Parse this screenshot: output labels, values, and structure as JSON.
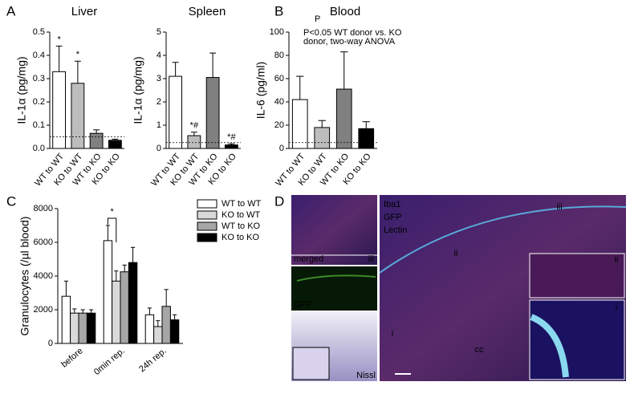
{
  "panels": [
    "A",
    "B",
    "C",
    "D"
  ],
  "chart_data": [
    {
      "type": "bar",
      "title": "Liver",
      "y_label": "IL-1α (pg/mg)",
      "categories": [
        "WT to WT",
        "KO to WT",
        "WT to KO",
        "KO to KO"
      ],
      "values": [
        0.33,
        0.28,
        0.065,
        0.035
      ],
      "errors": [
        0.11,
        0.095,
        0.015,
        0.005
      ],
      "colors": [
        "#ffffff",
        "#bdbdbd",
        "#808080",
        "#000000"
      ],
      "bar_annotations": [
        "*",
        "*",
        null,
        null
      ],
      "reference_line": 0.05,
      "ylim": [
        0,
        0.5
      ],
      "yticks": [
        {
          "value": 0,
          "label": "0.0"
        },
        0.1,
        0.2,
        0.3,
        0.4,
        0.5
      ]
    },
    {
      "type": "bar",
      "title": "Spleen",
      "y_label": "IL-1α (pg/mg)",
      "categories": [
        "WT to WT",
        "KO to WT",
        "WT to KO",
        "KO to KO"
      ],
      "values": [
        3.1,
        0.55,
        3.05,
        0.15
      ],
      "errors": [
        0.6,
        0.15,
        1.05,
        0.05
      ],
      "colors": [
        "#ffffff",
        "#bdbdbd",
        "#808080",
        "#000000"
      ],
      "bar_annotations": [
        null,
        "*#",
        null,
        "*#"
      ],
      "reference_line": 0.25,
      "ylim": [
        0,
        5
      ],
      "yticks": [
        0,
        1,
        2,
        3,
        4,
        5
      ]
    },
    {
      "type": "bar",
      "title": "Blood",
      "superscript": "P",
      "y_label": "IL-6 (pg/ml)",
      "note": [
        "P<0.05 WT donor vs. KO",
        "donor, two-way ANOVA"
      ],
      "categories": [
        "WT to WT",
        "KO to WT",
        "WT to KO",
        "KO to KO"
      ],
      "values": [
        42,
        18,
        51,
        17
      ],
      "errors": [
        20,
        6,
        32,
        6
      ],
      "colors": [
        "#ffffff",
        "#bdbdbd",
        "#808080",
        "#000000"
      ],
      "reference_line": 5,
      "ylim": [
        0,
        100
      ],
      "yticks": [
        0,
        20,
        40,
        60,
        80,
        100
      ]
    },
    {
      "type": "grouped_bar",
      "y_label": "Granulocytes (/µl blood)",
      "categories": [
        "before",
        "0min rep.",
        "24h rep."
      ],
      "series": [
        {
          "name": "WT to WT",
          "color": "#ffffff",
          "values": [
            2800,
            6100,
            1700
          ],
          "errors": [
            900,
            900,
            400
          ]
        },
        {
          "name": "KO to WT",
          "color": "#d9d9d9",
          "values": [
            1800,
            3700,
            1000
          ],
          "errors": [
            250,
            600,
            350
          ]
        },
        {
          "name": "WT to KO",
          "color": "#a6a6a6",
          "values": [
            1800,
            4250,
            2200
          ],
          "errors": [
            200,
            400,
            1000
          ]
        },
        {
          "name": "KO to KO",
          "color": "#000000",
          "values": [
            1800,
            4800,
            1400
          ],
          "errors": [
            200,
            900,
            300
          ]
        }
      ],
      "significance_label": "*",
      "ylim": [
        0,
        8000
      ],
      "yticks": [
        0,
        2000,
        4000,
        6000,
        8000
      ]
    }
  ],
  "panel_d": {
    "left_labels": [
      "merged",
      "iii",
      "GFP",
      "Nissl"
    ],
    "legend": [
      "Iba1",
      "GFP",
      "Lectin"
    ],
    "image_labels": [
      "iii",
      "ii",
      "i",
      "cc",
      "ii",
      "i"
    ]
  }
}
